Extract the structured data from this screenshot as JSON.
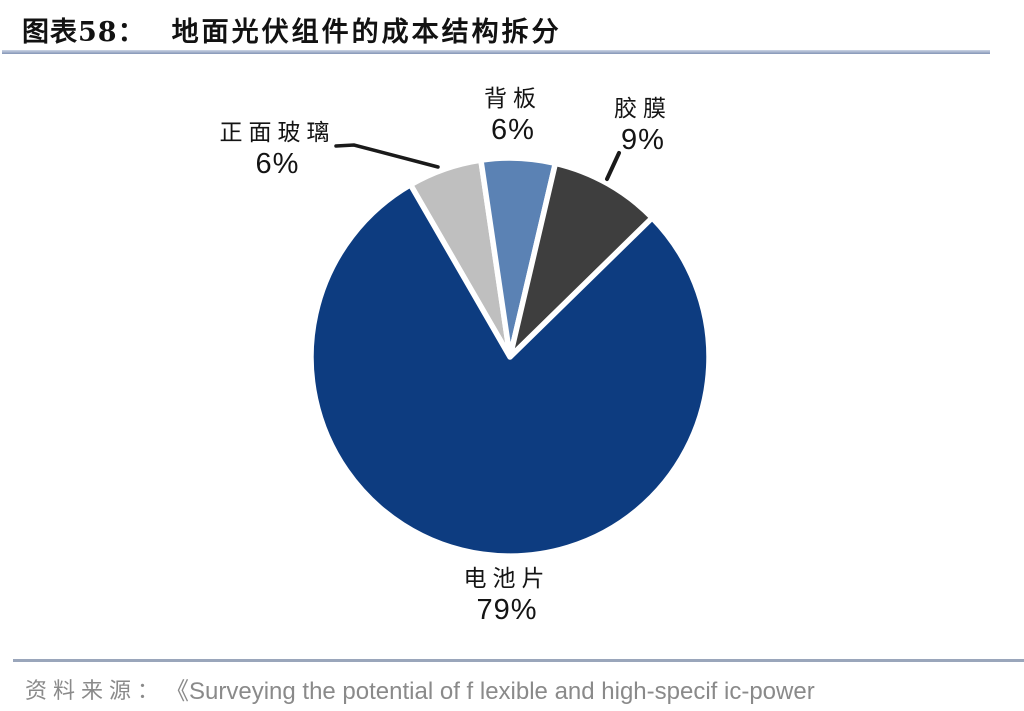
{
  "figure": {
    "label": "图表58：",
    "title": "地面光伏组件的成本结构拆分"
  },
  "chart_data": {
    "type": "pie",
    "title": "地面光伏组件的成本结构拆分",
    "unit": "%",
    "total": 100,
    "start_angle_deg": -30,
    "direction": "clockwise",
    "legend": "none",
    "labels": "outside-with-percent",
    "slices": [
      {
        "id": "front-glass",
        "label": "正面玻璃",
        "value": 6,
        "pct": "6%",
        "color": "#bfbfbf"
      },
      {
        "id": "backsheet",
        "label": "背板",
        "value": 6,
        "pct": "6%",
        "color": "#5b82b4"
      },
      {
        "id": "film",
        "label": "胶膜",
        "value": 9,
        "pct": "9%",
        "color": "#3e3e3e"
      },
      {
        "id": "cell",
        "label": "电池片",
        "value": 79,
        "pct": "79%",
        "color": "#0d3c80"
      }
    ]
  },
  "source": {
    "prefix": "资料来源：",
    "text": "《Surveying the potential of f lexible and high-specif ic-power"
  }
}
